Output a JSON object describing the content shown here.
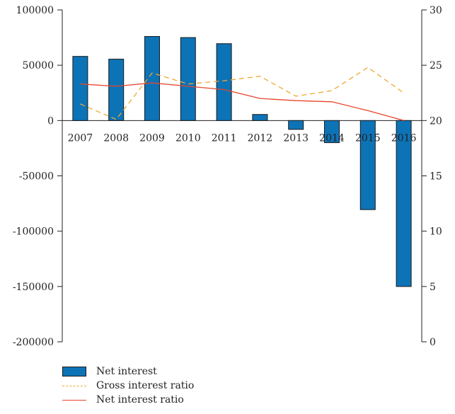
{
  "chart_data": {
    "type": "bar",
    "categories": [
      "2007",
      "2008",
      "2009",
      "2010",
      "2011",
      "2012",
      "2013",
      "2014",
      "2015",
      "2016"
    ],
    "series": [
      {
        "name": "Net interest",
        "type": "bar",
        "axis": "left",
        "color": "#0d73b7",
        "values": [
          58000,
          55500,
          76000,
          75000,
          69500,
          5500,
          -8000,
          -20000,
          -80500,
          -150000
        ]
      },
      {
        "name": "Gross interest ratio",
        "type": "line",
        "style": "dashed",
        "axis": "right",
        "color": "#f0a830",
        "values": [
          21.5,
          20.1,
          24.3,
          23.3,
          23.6,
          24.0,
          22.2,
          22.7,
          24.8,
          22.5
        ]
      },
      {
        "name": "Net interest ratio",
        "type": "line",
        "style": "solid",
        "axis": "right",
        "color": "#e8452d",
        "values": [
          23.3,
          23.1,
          23.4,
          23.1,
          22.8,
          22.0,
          21.8,
          21.7,
          20.9,
          20.0
        ]
      }
    ],
    "y_left": {
      "ylim": [
        -200000,
        100000
      ],
      "ticks": [
        100000,
        50000,
        0,
        -50000,
        -100000,
        -150000,
        -200000
      ],
      "tick_labels": [
        "100000",
        "50000",
        "0",
        "-50000",
        "-100000",
        "-150000",
        "-200000"
      ]
    },
    "y_right": {
      "ylim": [
        0,
        30
      ],
      "ticks": [
        30,
        25,
        20,
        15,
        10,
        5,
        0
      ],
      "tick_labels": [
        "30",
        "25",
        "20",
        "15",
        "10",
        "5",
        "0"
      ]
    },
    "title": "",
    "xlabel": "",
    "ylabel": "",
    "grid": false,
    "legend_position": "bottom-left"
  }
}
